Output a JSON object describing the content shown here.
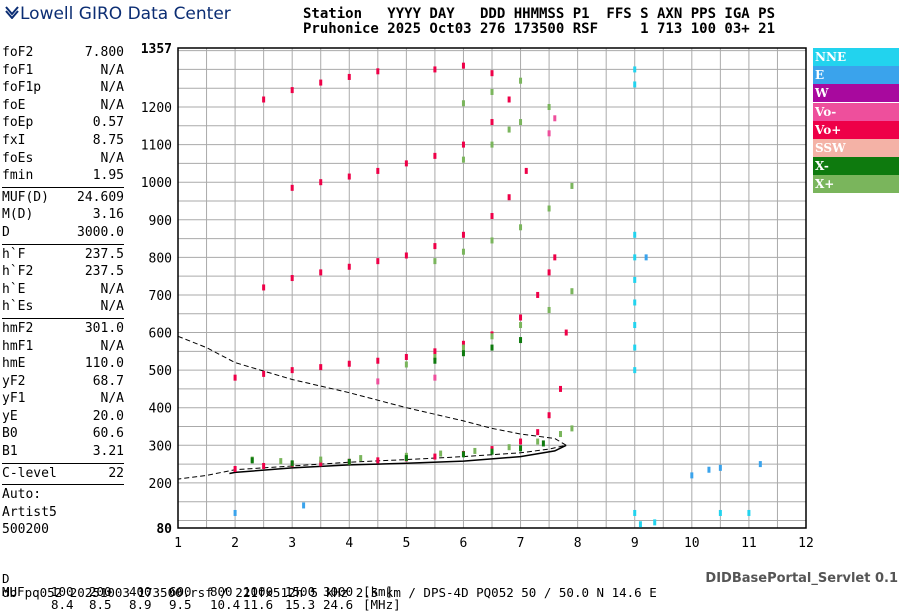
{
  "logo": {
    "text": "Lowell GIRO Data Center",
    "color": "#0b2d73"
  },
  "header": {
    "line1": "Station   YYYY DAY   DDD HHMMSS P1  FFS S AXN PPS IGA PS",
    "line2": "Pruhonice 2025 Oct03 276 173500 RSF     1 713 100 03+ 21"
  },
  "params": {
    "group1": [
      {
        "name": "foF2",
        "value": "7.800"
      },
      {
        "name": "foF1",
        "value": "N/A"
      },
      {
        "name": "foF1p",
        "value": "N/A"
      },
      {
        "name": "foE",
        "value": "N/A"
      },
      {
        "name": "foEp",
        "value": "0.57"
      },
      {
        "name": "fxI",
        "value": "8.75"
      },
      {
        "name": "foEs",
        "value": "N/A"
      },
      {
        "name": "fmin",
        "value": "1.95"
      }
    ],
    "group2": [
      {
        "name": "MUF(D)",
        "value": "24.609"
      },
      {
        "name": "M(D)",
        "value": "3.16"
      },
      {
        "name": "D",
        "value": "3000.0"
      }
    ],
    "group3": [
      {
        "name": "h`F",
        "value": "237.5"
      },
      {
        "name": "h`F2",
        "value": "237.5"
      },
      {
        "name": "h`E",
        "value": "N/A"
      },
      {
        "name": "h`Es",
        "value": "N/A"
      }
    ],
    "group4": [
      {
        "name": "hmF2",
        "value": "301.0"
      },
      {
        "name": "hmF1",
        "value": "N/A"
      },
      {
        "name": "hmE",
        "value": "110.0"
      },
      {
        "name": "yF2",
        "value": "68.7"
      },
      {
        "name": "yF1",
        "value": "N/A"
      },
      {
        "name": "yE",
        "value": "20.0"
      },
      {
        "name": "B0",
        "value": "60.6"
      },
      {
        "name": "B1",
        "value": "3.21"
      }
    ],
    "group5": [
      {
        "name": "C-level",
        "value": "22"
      }
    ],
    "auto": [
      "Auto:",
      "Artist5",
      "500200"
    ]
  },
  "legend": [
    {
      "label": "NNE",
      "color": "#22d3ee"
    },
    {
      "label": "E",
      "color": "#3aa3ec"
    },
    {
      "label": "W",
      "color": "#a8099e"
    },
    {
      "label": "Vo-",
      "color": "#ee4f9c"
    },
    {
      "label": "Vo+",
      "color": "#ee0048"
    },
    {
      "label": "SSW",
      "color": "#f4b2a6"
    },
    {
      "label": "X-",
      "color": "#0e7a0e"
    },
    {
      "label": "X+",
      "color": "#7ab55c"
    }
  ],
  "bottom": {
    "d_label": "D",
    "d_values": [
      "100",
      "200",
      "400",
      "600",
      "800",
      "1000",
      "1500",
      "3000",
      "[km]"
    ],
    "muf_label": "MUF",
    "muf_values": [
      "8.4",
      "8.5",
      "8.9",
      "9.5",
      "10.4",
      "11.6",
      "15.3",
      "24.6",
      "[MHz]"
    ],
    "footer": "db pq052 20251003 173500.rsf / 221fx512h 5 kHz 2.5 km / DPS-4D PQ052 50 / 50.0 N 14.6 E",
    "servlet": "DIDBasePortal_Servlet 0.1"
  },
  "chart_data": {
    "type": "scatter",
    "xlim": [
      1,
      12
    ],
    "ylim": [
      80,
      1357
    ],
    "x_ticks": [
      "1",
      "2",
      "3",
      "4",
      "5",
      "6",
      "7",
      "8",
      "9",
      "10",
      "11",
      "12"
    ],
    "y_ticks": [
      "80",
      "200",
      "300",
      "400",
      "500",
      "600",
      "700",
      "800",
      "900",
      "1000",
      "1100",
      "1200",
      "1357"
    ],
    "grid": true,
    "series": [
      {
        "name": "Vo+",
        "color": "#ee0048",
        "points": [
          [
            2.0,
            237
          ],
          [
            2.5,
            245
          ],
          [
            3.0,
            250
          ],
          [
            3.5,
            252
          ],
          [
            4.0,
            256
          ],
          [
            4.5,
            260
          ],
          [
            5.0,
            265
          ],
          [
            5.5,
            270
          ],
          [
            6.0,
            277
          ],
          [
            6.5,
            290
          ],
          [
            7.0,
            310
          ],
          [
            7.3,
            335
          ],
          [
            7.5,
            380
          ],
          [
            7.7,
            450
          ],
          [
            7.8,
            600
          ],
          [
            2.0,
            480
          ],
          [
            2.5,
            490
          ],
          [
            3.0,
            500
          ],
          [
            3.5,
            508
          ],
          [
            4.0,
            517
          ],
          [
            4.5,
            525
          ],
          [
            5.0,
            535
          ],
          [
            5.5,
            550
          ],
          [
            6.0,
            570
          ],
          [
            6.5,
            595
          ],
          [
            7.0,
            640
          ],
          [
            7.3,
            700
          ],
          [
            7.5,
            760
          ],
          [
            7.6,
            800
          ],
          [
            2.5,
            720
          ],
          [
            3.0,
            745
          ],
          [
            3.5,
            760
          ],
          [
            4.0,
            775
          ],
          [
            4.5,
            790
          ],
          [
            5.0,
            805
          ],
          [
            5.5,
            830
          ],
          [
            6.0,
            860
          ],
          [
            6.5,
            910
          ],
          [
            6.8,
            960
          ],
          [
            7.1,
            1030
          ],
          [
            3.0,
            985
          ],
          [
            3.5,
            1000
          ],
          [
            4.0,
            1015
          ],
          [
            4.5,
            1030
          ],
          [
            5.0,
            1050
          ],
          [
            5.5,
            1070
          ],
          [
            6.0,
            1100
          ],
          [
            6.5,
            1160
          ],
          [
            6.8,
            1220
          ],
          [
            2.5,
            1220
          ],
          [
            3.0,
            1245
          ],
          [
            3.5,
            1265
          ],
          [
            4.0,
            1280
          ],
          [
            4.5,
            1295
          ],
          [
            5.5,
            1300
          ],
          [
            6.0,
            1310
          ],
          [
            6.5,
            1290
          ]
        ]
      },
      {
        "name": "X+",
        "color": "#7ab55c",
        "points": [
          [
            2.3,
            262
          ],
          [
            2.8,
            258
          ],
          [
            3.5,
            262
          ],
          [
            4.2,
            266
          ],
          [
            5.0,
            272
          ],
          [
            5.6,
            278
          ],
          [
            6.2,
            285
          ],
          [
            6.8,
            295
          ],
          [
            7.3,
            310
          ],
          [
            7.7,
            330
          ],
          [
            7.9,
            345
          ],
          [
            5.0,
            515
          ],
          [
            5.5,
            535
          ],
          [
            6.0,
            560
          ],
          [
            6.5,
            590
          ],
          [
            7.0,
            620
          ],
          [
            7.5,
            660
          ],
          [
            7.9,
            710
          ],
          [
            5.5,
            790
          ],
          [
            6.0,
            815
          ],
          [
            6.5,
            845
          ],
          [
            7.0,
            880
          ],
          [
            7.5,
            930
          ],
          [
            7.9,
            990
          ],
          [
            6.0,
            1060
          ],
          [
            6.5,
            1100
          ],
          [
            6.8,
            1140
          ],
          [
            7.0,
            1160
          ],
          [
            7.5,
            1200
          ],
          [
            6.0,
            1210
          ],
          [
            6.5,
            1240
          ],
          [
            7.0,
            1270
          ]
        ]
      },
      {
        "name": "X-",
        "color": "#0e7a0e",
        "points": [
          [
            2.3,
            260
          ],
          [
            3.0,
            252
          ],
          [
            4.0,
            256
          ],
          [
            5.0,
            266
          ],
          [
            6.0,
            276
          ],
          [
            6.5,
            283
          ],
          [
            7.0,
            292
          ],
          [
            7.4,
            305
          ],
          [
            5.5,
            525
          ],
          [
            6.0,
            545
          ],
          [
            6.5,
            560
          ],
          [
            7.0,
            580
          ]
        ]
      },
      {
        "name": "NNE",
        "color": "#22d3ee",
        "points": [
          [
            9.0,
            500
          ],
          [
            9.0,
            560
          ],
          [
            9.0,
            620
          ],
          [
            9.0,
            680
          ],
          [
            9.0,
            740
          ],
          [
            9.0,
            800
          ],
          [
            9.0,
            860
          ],
          [
            9.0,
            1260
          ],
          [
            9.0,
            1300
          ],
          [
            9.0,
            120
          ],
          [
            9.1,
            90
          ],
          [
            9.35,
            95
          ],
          [
            10.5,
            120
          ],
          [
            11.0,
            120
          ]
        ]
      },
      {
        "name": "E",
        "color": "#3aa3ec",
        "points": [
          [
            10.0,
            220
          ],
          [
            10.3,
            235
          ],
          [
            10.5,
            240
          ],
          [
            11.2,
            250
          ],
          [
            2.0,
            120
          ],
          [
            3.2,
            140
          ],
          [
            9.2,
            800
          ]
        ]
      },
      {
        "name": "Vo-",
        "color": "#ee4f9c",
        "points": [
          [
            4.5,
            470
          ],
          [
            5.5,
            480
          ],
          [
            7.5,
            1130
          ],
          [
            7.6,
            1170
          ]
        ]
      }
    ],
    "curves": {
      "dashed": [
        [
          1.0,
          590
        ],
        [
          1.5,
          560
        ],
        [
          2.0,
          520
        ],
        [
          3.0,
          475
        ],
        [
          4.0,
          440
        ],
        [
          5.0,
          400
        ],
        [
          6.0,
          365
        ],
        [
          6.5,
          345
        ],
        [
          7.0,
          330
        ],
        [
          7.4,
          322
        ],
        [
          7.6,
          318
        ],
        [
          7.8,
          300
        ],
        [
          7.5,
          290
        ],
        [
          7.0,
          280
        ],
        [
          6.0,
          270
        ],
        [
          5.0,
          262
        ],
        [
          4.0,
          255
        ],
        [
          3.0,
          245
        ],
        [
          2.0,
          235
        ],
        [
          1.5,
          220
        ],
        [
          1.0,
          210
        ]
      ],
      "solid": [
        [
          7.8,
          300
        ],
        [
          7.6,
          285
        ],
        [
          7.0,
          270
        ],
        [
          6.0,
          258
        ],
        [
          5.0,
          252
        ],
        [
          4.0,
          248
        ],
        [
          3.0,
          240
        ],
        [
          2.0,
          228
        ],
        [
          1.9,
          225
        ]
      ]
    },
    "title": "",
    "xlabel": "",
    "ylabel": ""
  }
}
